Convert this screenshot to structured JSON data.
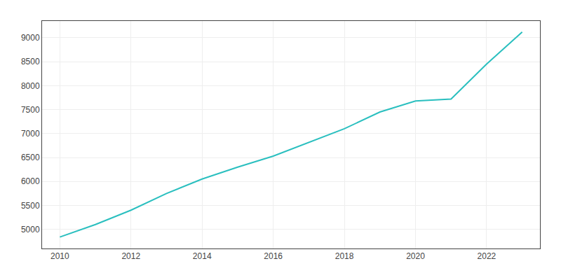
{
  "chart_data": {
    "type": "line",
    "x": [
      2010,
      2011,
      2012,
      2013,
      2014,
      2015,
      2016,
      2017,
      2018,
      2019,
      2020,
      2021,
      2022,
      2023
    ],
    "values": [
      4840,
      5100,
      5400,
      5750,
      6050,
      6300,
      6530,
      6820,
      7100,
      7450,
      7680,
      7720,
      8450,
      9120
    ],
    "color": "#2abfbf",
    "xlim": [
      2009.5,
      2023.5
    ],
    "ylim": [
      4600,
      9350
    ],
    "xticks": [
      2010,
      2012,
      2014,
      2016,
      2018,
      2020,
      2022
    ],
    "yticks": [
      5000,
      5500,
      6000,
      6500,
      7000,
      7500,
      8000,
      8500,
      9000
    ],
    "grid": true
  }
}
